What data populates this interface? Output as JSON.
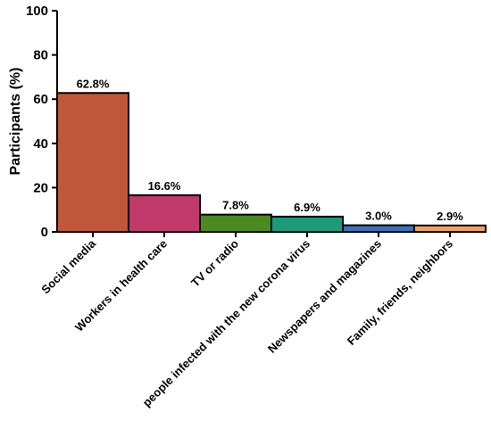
{
  "chart_data": {
    "type": "bar",
    "title": "",
    "xlabel": "",
    "ylabel": "Participants (%)",
    "ylim": [
      0,
      100
    ],
    "yticks": [
      "0",
      "20",
      "40",
      "60",
      "80",
      "100"
    ],
    "categories": [
      "Social media",
      "Workers in health care",
      "TV or radio",
      "people infected with the new corona virus",
      "Newspapers and magazines",
      "Family, friends, neighbors"
    ],
    "values": [
      62.8,
      16.6,
      7.8,
      6.9,
      3.0,
      2.9
    ],
    "data_labels": [
      "62.8%",
      "16.6%",
      "7.8%",
      "6.9%",
      "3.0%",
      "2.9%"
    ],
    "colors": [
      "#c0573a",
      "#c0396a",
      "#4a8a1e",
      "#1d9a7a",
      "#3a72b8",
      "#f0a060"
    ],
    "grid": false,
    "legend": "none"
  }
}
